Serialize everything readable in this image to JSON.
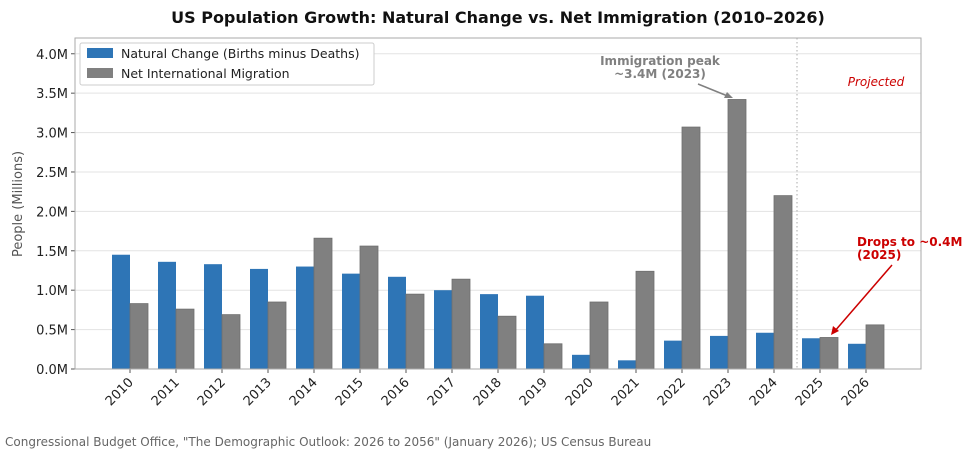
{
  "chart_data": {
    "type": "bar",
    "title": "US Population Growth: Natural Change vs. Net Immigration (2010–2026)",
    "ylabel": "People (Millions)",
    "xlabel": "",
    "ylim": [
      0,
      4.2
    ],
    "yticks": [
      "0.0M",
      "0.5M",
      "1.0M",
      "1.5M",
      "2.0M",
      "2.5M",
      "3.0M",
      "3.5M",
      "4.0M"
    ],
    "ytick_values": [
      0,
      0.5,
      1,
      1.5,
      2,
      2.5,
      3,
      3.5,
      4
    ],
    "grid": "horizontal",
    "legend_position": "top-left",
    "categories": [
      "2010",
      "2011",
      "2012",
      "2013",
      "2014",
      "2015",
      "2016",
      "2017",
      "2018",
      "2019",
      "2020",
      "2021",
      "2022",
      "2023",
      "2024",
      "2025",
      "2026"
    ],
    "series": [
      {
        "name": "Natural Change (Births minus Deaths)",
        "color": "#2e75b6",
        "values": [
          1.45,
          1.36,
          1.33,
          1.27,
          1.3,
          1.21,
          1.17,
          1.0,
          0.95,
          0.93,
          0.18,
          0.11,
          0.36,
          0.42,
          0.46,
          0.39,
          0.32
        ]
      },
      {
        "name": "Net International Migration",
        "color": "#808080",
        "values": [
          0.83,
          0.76,
          0.69,
          0.85,
          1.66,
          1.56,
          0.95,
          1.14,
          0.67,
          0.32,
          0.85,
          1.24,
          3.07,
          3.42,
          2.2,
          0.4,
          0.56
        ]
      }
    ],
    "annotations": {
      "peak": {
        "line1": "Immigration peak",
        "line2": "~3.4M (2023)",
        "color": "#808080"
      },
      "drop": {
        "line1": "Drops to ~0.4M",
        "line2": "(2025)",
        "color": "#cc0000"
      },
      "projected": {
        "label": "Projected",
        "color": "#cc0000",
        "divider_between": [
          "2024",
          "2025"
        ]
      }
    },
    "source": "Congressional Budget Office, \"The Demographic Outlook: 2026 to 2056\" (January 2026);  US Census Bureau"
  }
}
